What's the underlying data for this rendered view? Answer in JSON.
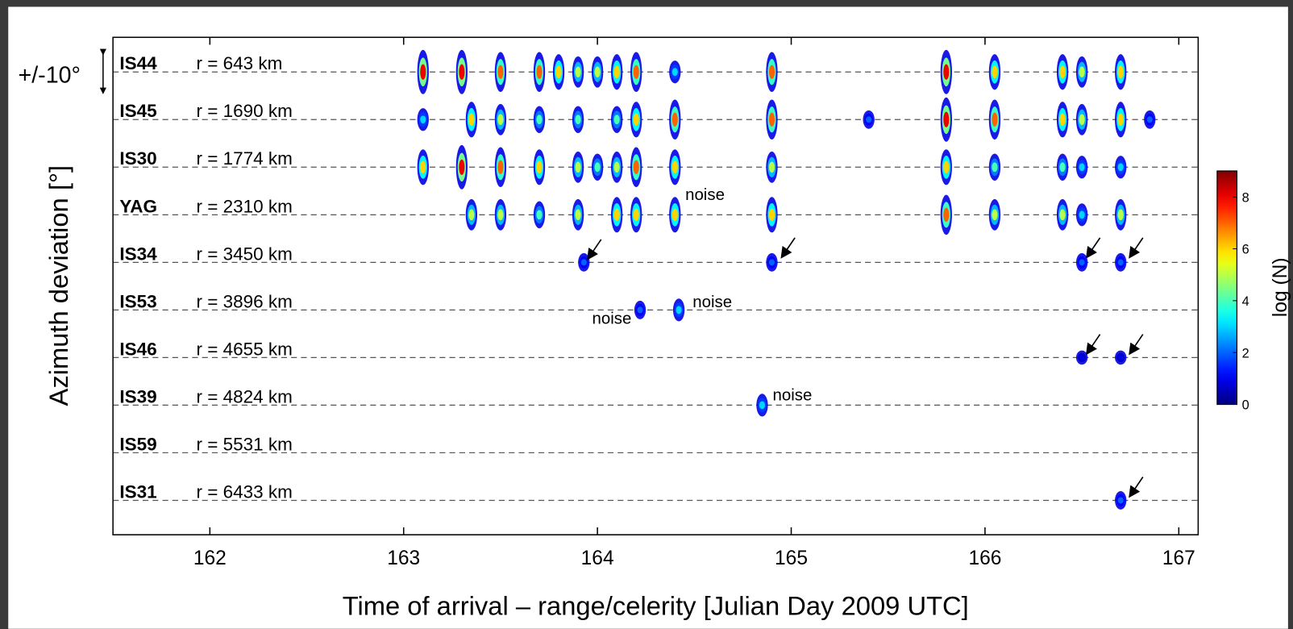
{
  "chart_data": {
    "type": "detection-map",
    "x_label": "Time of arrival – range/celerity [Julian Day 2009 UTC]",
    "y_label": "Azimuth deviation [°]",
    "scale_label": "+/-10°",
    "xlim": [
      161.5,
      167.1
    ],
    "xticks": [
      162,
      163,
      164,
      165,
      166,
      167
    ],
    "colormap": "jet",
    "colorbar_label": "log (N)",
    "clim": [
      0,
      9
    ],
    "cticks": [
      0,
      2,
      4,
      6,
      8
    ],
    "series": [
      {
        "name": "IS44",
        "range": "r = 643 km",
        "x": [
          163.1,
          163.3,
          163.5,
          163.7,
          163.8,
          163.9,
          164.0,
          164.1,
          164.2,
          164.4,
          164.9,
          165.8,
          166.05,
          166.4,
          166.5,
          166.7
        ],
        "values": [
          8,
          8,
          7,
          7,
          6,
          5,
          5,
          6,
          7,
          3,
          7,
          8,
          6,
          6,
          5,
          6
        ]
      },
      {
        "name": "IS45",
        "range": "r = 1690 km",
        "x": [
          163.1,
          163.35,
          163.5,
          163.7,
          163.9,
          164.1,
          164.2,
          164.4,
          164.9,
          165.4,
          165.8,
          166.05,
          166.4,
          166.5,
          166.7,
          166.85
        ],
        "values": [
          3,
          6,
          5,
          4,
          4,
          4,
          6,
          7,
          7,
          2,
          8,
          7,
          6,
          5,
          6,
          2
        ]
      },
      {
        "name": "IS30",
        "range": "r = 1774 km",
        "x": [
          163.1,
          163.3,
          163.5,
          163.7,
          163.9,
          164.0,
          164.1,
          164.2,
          164.4,
          164.9,
          165.8,
          166.05,
          166.4,
          166.5,
          166.7
        ],
        "values": [
          6,
          8,
          7,
          6,
          5,
          4,
          5,
          7,
          6,
          5,
          6,
          4,
          4,
          3,
          3
        ]
      },
      {
        "name": "YAG",
        "range": "r = 2310 km",
        "x": [
          163.35,
          163.5,
          163.7,
          163.9,
          164.1,
          164.2,
          164.4,
          164.9,
          165.8,
          166.05,
          166.4,
          166.5,
          166.7
        ],
        "values": [
          5,
          5,
          4,
          5,
          6,
          6,
          6,
          6,
          7,
          5,
          5,
          3,
          5
        ]
      },
      {
        "name": "IS34",
        "range": "r = 3450 km",
        "x": [
          163.93,
          164.9,
          166.5,
          166.7
        ],
        "values": [
          2,
          2,
          2,
          2
        ]
      },
      {
        "name": "IS53",
        "range": "r = 3896 km",
        "x": [
          164.22,
          164.42
        ],
        "values": [
          2,
          3
        ]
      },
      {
        "name": "IS46",
        "range": "r = 4655 km",
        "x": [
          166.5,
          166.7
        ],
        "values": [
          1,
          1
        ]
      },
      {
        "name": "IS39",
        "range": "r = 4824 km",
        "x": [
          164.85
        ],
        "values": [
          3
        ]
      },
      {
        "name": "IS59",
        "range": "r = 5531 km",
        "x": [],
        "values": []
      },
      {
        "name": "IS31",
        "range": "r = 6433 km",
        "x": [
          166.7
        ],
        "values": [
          2
        ]
      }
    ],
    "annotations": [
      "noise",
      "noise",
      "noise",
      "noise"
    ]
  }
}
